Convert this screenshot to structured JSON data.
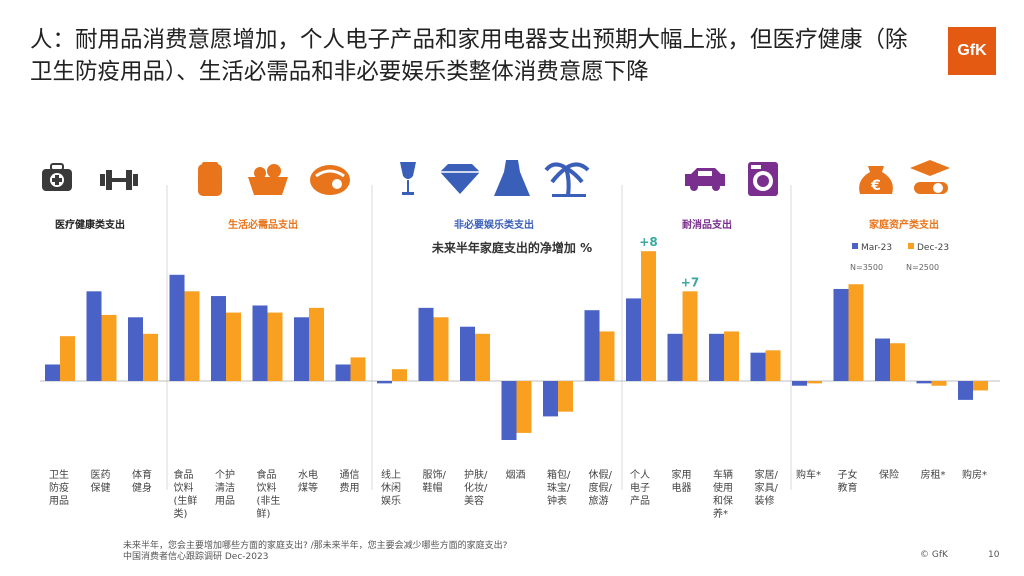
{
  "title": "人：耐用品消费意愿增加，个人电子产品和家用电器支出预期大幅上涨，但医疗健康（除卫生防疫用品）、生活必需品和非必要娱乐类整体消费意愿下降",
  "logo_text": "GfK",
  "footer": {
    "question": "未来半年，您会主要增加哪些方面的家庭支出? /那未来半年，您主要会减少哪些方面的家庭支出?",
    "source": "中国消费者信心跟踪调研 Dec-2023",
    "copyright": "© GfK",
    "page": "10"
  },
  "colors": {
    "mar": "#4a62c6",
    "dec": "#f9a021",
    "accent": "#e55a12",
    "purple": "#7a2f8e",
    "blue": "#3a5fb8",
    "orange": "#e8741c"
  },
  "chart_data": {
    "type": "bar",
    "subtitle": "未来半年家庭支出的净增加 %",
    "legend": {
      "placement": "top-right",
      "entries": [
        "Mar-23",
        "Dec-23"
      ]
    },
    "sample_sizes": [
      "N=3500",
      "N=2500"
    ],
    "groups": [
      {
        "title": "医疗健康类支出",
        "color": "#222222",
        "icons": [
          "first-aid-kit-icon",
          "dumbbell-icon"
        ],
        "categories": [
          "卫生防疫用品",
          "医药保健",
          "体育健身"
        ]
      },
      {
        "title": "生活必需品支出",
        "color": "#e8741c",
        "icons": [
          "canned-food-icon",
          "vegetables-basket-icon",
          "meat-icon"
        ],
        "categories": [
          "食品饮料(生鲜类)",
          "个护清洁用品",
          "食品饮料(非生鲜)",
          "水电煤等",
          "通信费用"
        ]
      },
      {
        "title": "非必要娱乐类支出",
        "color": "#3a5fb8",
        "icons": [
          "wine-glass-icon",
          "diamond-icon",
          "dress-icon",
          "palm-tree-icon"
        ],
        "categories": [
          "线上休闲娱乐",
          "服饰/鞋帽",
          "护肤/化妆/美容",
          "烟酒",
          "箱包/珠宝/钟表",
          "休假/度假/旅游"
        ]
      },
      {
        "title": "耐消品支出",
        "color": "#7a2f8e",
        "icons": [
          "car-icon",
          "washing-machine-icon"
        ],
        "categories": [
          "个人电子产品",
          "家用电器",
          "车辆使用和保养*",
          "家居/家具/装修",
          "购车*"
        ]
      },
      {
        "title": "家庭资产类支出",
        "color": "#e8741c",
        "icons": [
          "money-bag-icon",
          "graduation-cap-icon"
        ],
        "categories": [
          "子女教育",
          "保险",
          "房租*",
          "购房*"
        ]
      }
    ],
    "category_labels": [
      [
        "卫生",
        "防疫",
        "用品"
      ],
      [
        "医药",
        "保健"
      ],
      [
        "体育",
        "健身"
      ],
      [
        "食品",
        "饮料",
        "(生鲜",
        "类)"
      ],
      [
        "个护",
        "清洁",
        "用品"
      ],
      [
        "食品",
        "饮料",
        "(非生",
        "鲜)"
      ],
      [
        "水电",
        "煤等"
      ],
      [
        "通信",
        "费用"
      ],
      [
        "线上",
        "休闲",
        "娱乐"
      ],
      [
        "服饰/",
        "鞋帽"
      ],
      [
        "护肤/",
        "化妆/",
        "美容"
      ],
      [
        "烟酒"
      ],
      [
        "箱包/",
        "珠宝/",
        "钟表"
      ],
      [
        "休假/",
        "度假/",
        "旅游"
      ],
      [
        "个人",
        "电子",
        "产品"
      ],
      [
        "家用",
        "电器"
      ],
      [
        "车辆",
        "使用",
        "和保",
        "养*"
      ],
      [
        "家居/",
        "家具/",
        "装修"
      ],
      [
        "购车*"
      ],
      [
        "子女",
        "教育"
      ],
      [
        "保险"
      ],
      [
        "房租*"
      ],
      [
        "购房*"
      ]
    ],
    "series": [
      {
        "name": "Mar-23",
        "values": [
          0.7,
          3.8,
          2.7,
          4.5,
          3.6,
          3.2,
          2.7,
          0.7,
          -0.1,
          3.1,
          2.3,
          -2.5,
          -1.5,
          3.0,
          3.5,
          2.0,
          2.0,
          1.2,
          -0.2,
          3.9,
          1.8,
          -0.1,
          -0.8
        ]
      },
      {
        "name": "Dec-23",
        "values": [
          1.9,
          2.8,
          2.0,
          3.8,
          2.9,
          2.9,
          3.1,
          1.0,
          0.5,
          2.7,
          2.0,
          -2.2,
          -1.3,
          2.1,
          5.5,
          3.8,
          2.1,
          1.3,
          -0.1,
          4.1,
          1.6,
          -0.2,
          -0.4
        ]
      }
    ],
    "data_labels": [
      {
        "category": "个人电子产品",
        "series": "Dec-23",
        "text": "+8"
      },
      {
        "category": "家用电器",
        "series": "Dec-23",
        "text": "+7"
      }
    ],
    "data_label_color": "#3aa8a0",
    "ylim": [
      -3,
      6
    ],
    "grid": false
  }
}
